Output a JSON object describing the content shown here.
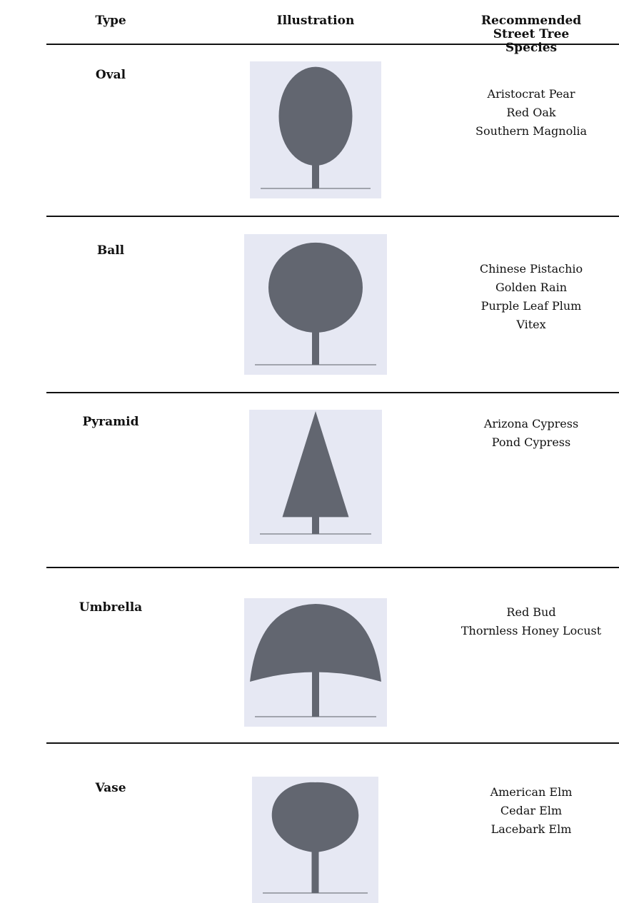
{
  "table": {
    "headers": [
      "Type",
      "Illustration",
      "Recommended Street Tree Species"
    ],
    "rows": [
      {
        "type": "Oval",
        "species": [
          "Aristocrat Pear",
          "Red Oak",
          "Southern Magnolia"
        ]
      },
      {
        "type": "Ball",
        "species": [
          "Chinese Pistachio",
          "Golden Rain",
          "Purple Leaf Plum",
          "Vitex"
        ]
      },
      {
        "type": "Pyramid",
        "species": [
          "Arizona Cypress",
          "Pond Cypress"
        ]
      },
      {
        "type": "Umbrella",
        "species": [
          "Red Bud",
          "Thornless Honey Locust"
        ]
      },
      {
        "type": "Vase",
        "species": [
          "American Elm",
          "Cedar Elm",
          "Lacebark Elm"
        ]
      }
    ]
  }
}
